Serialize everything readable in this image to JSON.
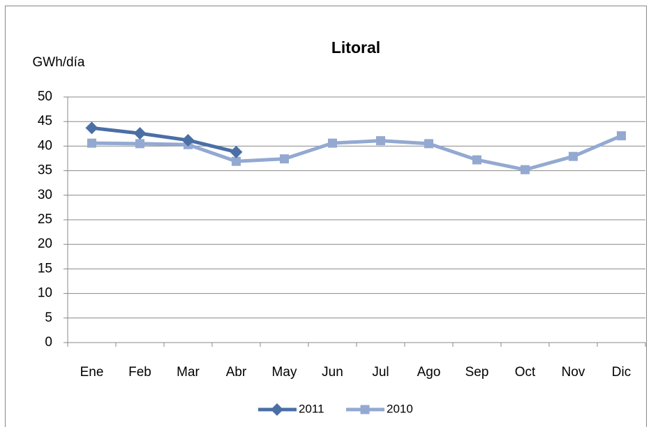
{
  "chart_data": {
    "type": "line",
    "title": "Litoral",
    "y_label": "GWh/día",
    "categories": [
      "Ene",
      "Feb",
      "Mar",
      "Abr",
      "May",
      "Jun",
      "Jul",
      "Ago",
      "Sep",
      "Oct",
      "Nov",
      "Dic"
    ],
    "series": [
      {
        "name": "2011",
        "color": "#4a6fa5",
        "marker": "diamond",
        "values": [
          43.7,
          42.6,
          41.2,
          38.8,
          null,
          null,
          null,
          null,
          null,
          null,
          null,
          null
        ]
      },
      {
        "name": "2010",
        "color": "#93a9d1",
        "marker": "square",
        "values": [
          40.6,
          40.5,
          40.3,
          36.9,
          37.4,
          40.6,
          41.1,
          40.5,
          37.2,
          35.2,
          37.9,
          42.1
        ]
      }
    ],
    "ylim": [
      0,
      50
    ],
    "yticks": [
      0,
      5,
      10,
      15,
      20,
      25,
      30,
      35,
      40,
      45,
      50
    ],
    "grid": true,
    "legend": "bottom"
  }
}
